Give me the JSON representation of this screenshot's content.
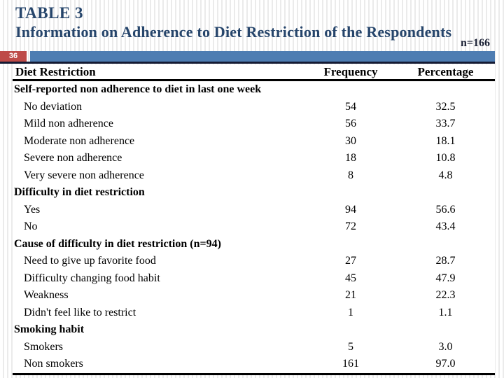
{
  "slide": {
    "title_line1": "TABLE 3",
    "title_line2": "Information on Adherence to Diet Restriction of the Respondents",
    "sample_size": "n=166",
    "slide_number": "36"
  },
  "colors": {
    "title_navy": "#26456B",
    "badge_red": "#BE4B48",
    "bar_blue": "#4E7DB2",
    "strip_underline": "#141A33",
    "table_border": "#000000"
  },
  "table": {
    "columns": [
      "Diet Restriction",
      "Frequency",
      "Percentage"
    ],
    "rows": [
      {
        "type": "section",
        "label": "Self-reported non adherence to diet in last one week",
        "frequency": "",
        "percentage": ""
      },
      {
        "type": "item",
        "label": "No deviation",
        "frequency": "54",
        "percentage": "32.5"
      },
      {
        "type": "item",
        "label": "Mild non adherence",
        "frequency": "56",
        "percentage": "33.7"
      },
      {
        "type": "item",
        "label": "Moderate non adherence",
        "frequency": "30",
        "percentage": "18.1"
      },
      {
        "type": "item",
        "label": "Severe non adherence",
        "frequency": "18",
        "percentage": "10.8"
      },
      {
        "type": "item",
        "label": "Very severe non adherence",
        "frequency": "8",
        "percentage": "4.8"
      },
      {
        "type": "section",
        "label": "Difficulty in diet restriction",
        "frequency": "",
        "percentage": ""
      },
      {
        "type": "item",
        "label": "Yes",
        "frequency": "94",
        "percentage": "56.6"
      },
      {
        "type": "item",
        "label": "No",
        "frequency": "72",
        "percentage": "43.4"
      },
      {
        "type": "section",
        "label": "Cause of difficulty in diet restriction (n=94)",
        "frequency": "",
        "percentage": ""
      },
      {
        "type": "item",
        "label": "Need to give up favorite food",
        "frequency": "27",
        "percentage": "28.7"
      },
      {
        "type": "item",
        "label": "Difficulty changing food habit",
        "frequency": "45",
        "percentage": "47.9"
      },
      {
        "type": "item",
        "label": "Weakness",
        "frequency": "21",
        "percentage": "22.3"
      },
      {
        "type": "item",
        "label": "Didn't feel like to restrict",
        "frequency": "1",
        "percentage": "1.1"
      },
      {
        "type": "section",
        "label": "Smoking habit",
        "frequency": "",
        "percentage": ""
      },
      {
        "type": "item",
        "label": "Smokers",
        "frequency": "5",
        "percentage": "3.0"
      },
      {
        "type": "item",
        "label": "Non smokers",
        "frequency": "161",
        "percentage": "97.0"
      }
    ]
  }
}
